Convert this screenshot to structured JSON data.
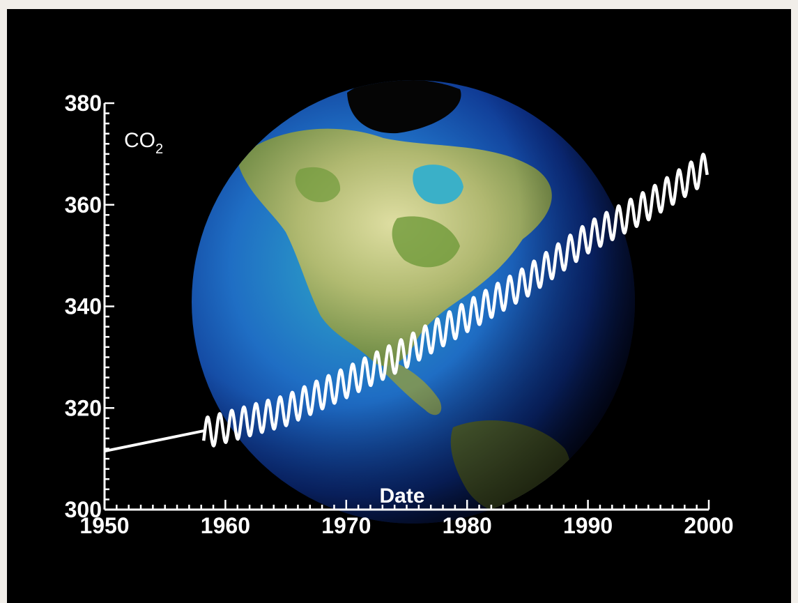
{
  "colors": {
    "background": "#000000",
    "page_border": "#f1eee9",
    "axis": "#ffffff",
    "series": "#ffffff"
  },
  "chart_data": {
    "type": "line",
    "title": "",
    "xlabel": "Date",
    "ylabel": "CO₂",
    "ylabel_parts": {
      "base": "CO",
      "subscript": "2"
    },
    "xlim": [
      1950,
      2000
    ],
    "ylim": [
      300,
      380
    ],
    "x_ticks": [
      1950,
      1960,
      1970,
      1980,
      1990,
      2000
    ],
    "x_tick_labels": [
      "1950",
      "1960",
      "1970",
      "1980",
      "1990",
      "2000"
    ],
    "y_ticks": [
      300,
      320,
      340,
      360,
      380
    ],
    "y_tick_labels": [
      "300",
      "320",
      "340",
      "360",
      "380"
    ],
    "grid": false,
    "legend": null,
    "background_image": "earth-globe-north-america",
    "series": [
      {
        "points": [
          {
            "x": 1950.0,
            "y": 311.5
          },
          {
            "x": 1958.2,
            "y": 315.5
          }
        ]
      },
      {
        "trend": [
          {
            "x": 1958.2,
            "y": 315.0
          },
          {
            "x": 1965.0,
            "y": 319.5
          },
          {
            "x": 1970.0,
            "y": 325.0
          },
          {
            "x": 1975.0,
            "y": 331.0
          },
          {
            "x": 1980.0,
            "y": 338.0
          },
          {
            "x": 1985.0,
            "y": 345.0
          },
          {
            "x": 1990.0,
            "y": 353.5
          },
          {
            "x": 1995.0,
            "y": 360.0
          },
          {
            "x": 1999.9,
            "y": 367.5
          }
        ],
        "seasonal_amplitude": 3.0
      }
    ]
  }
}
